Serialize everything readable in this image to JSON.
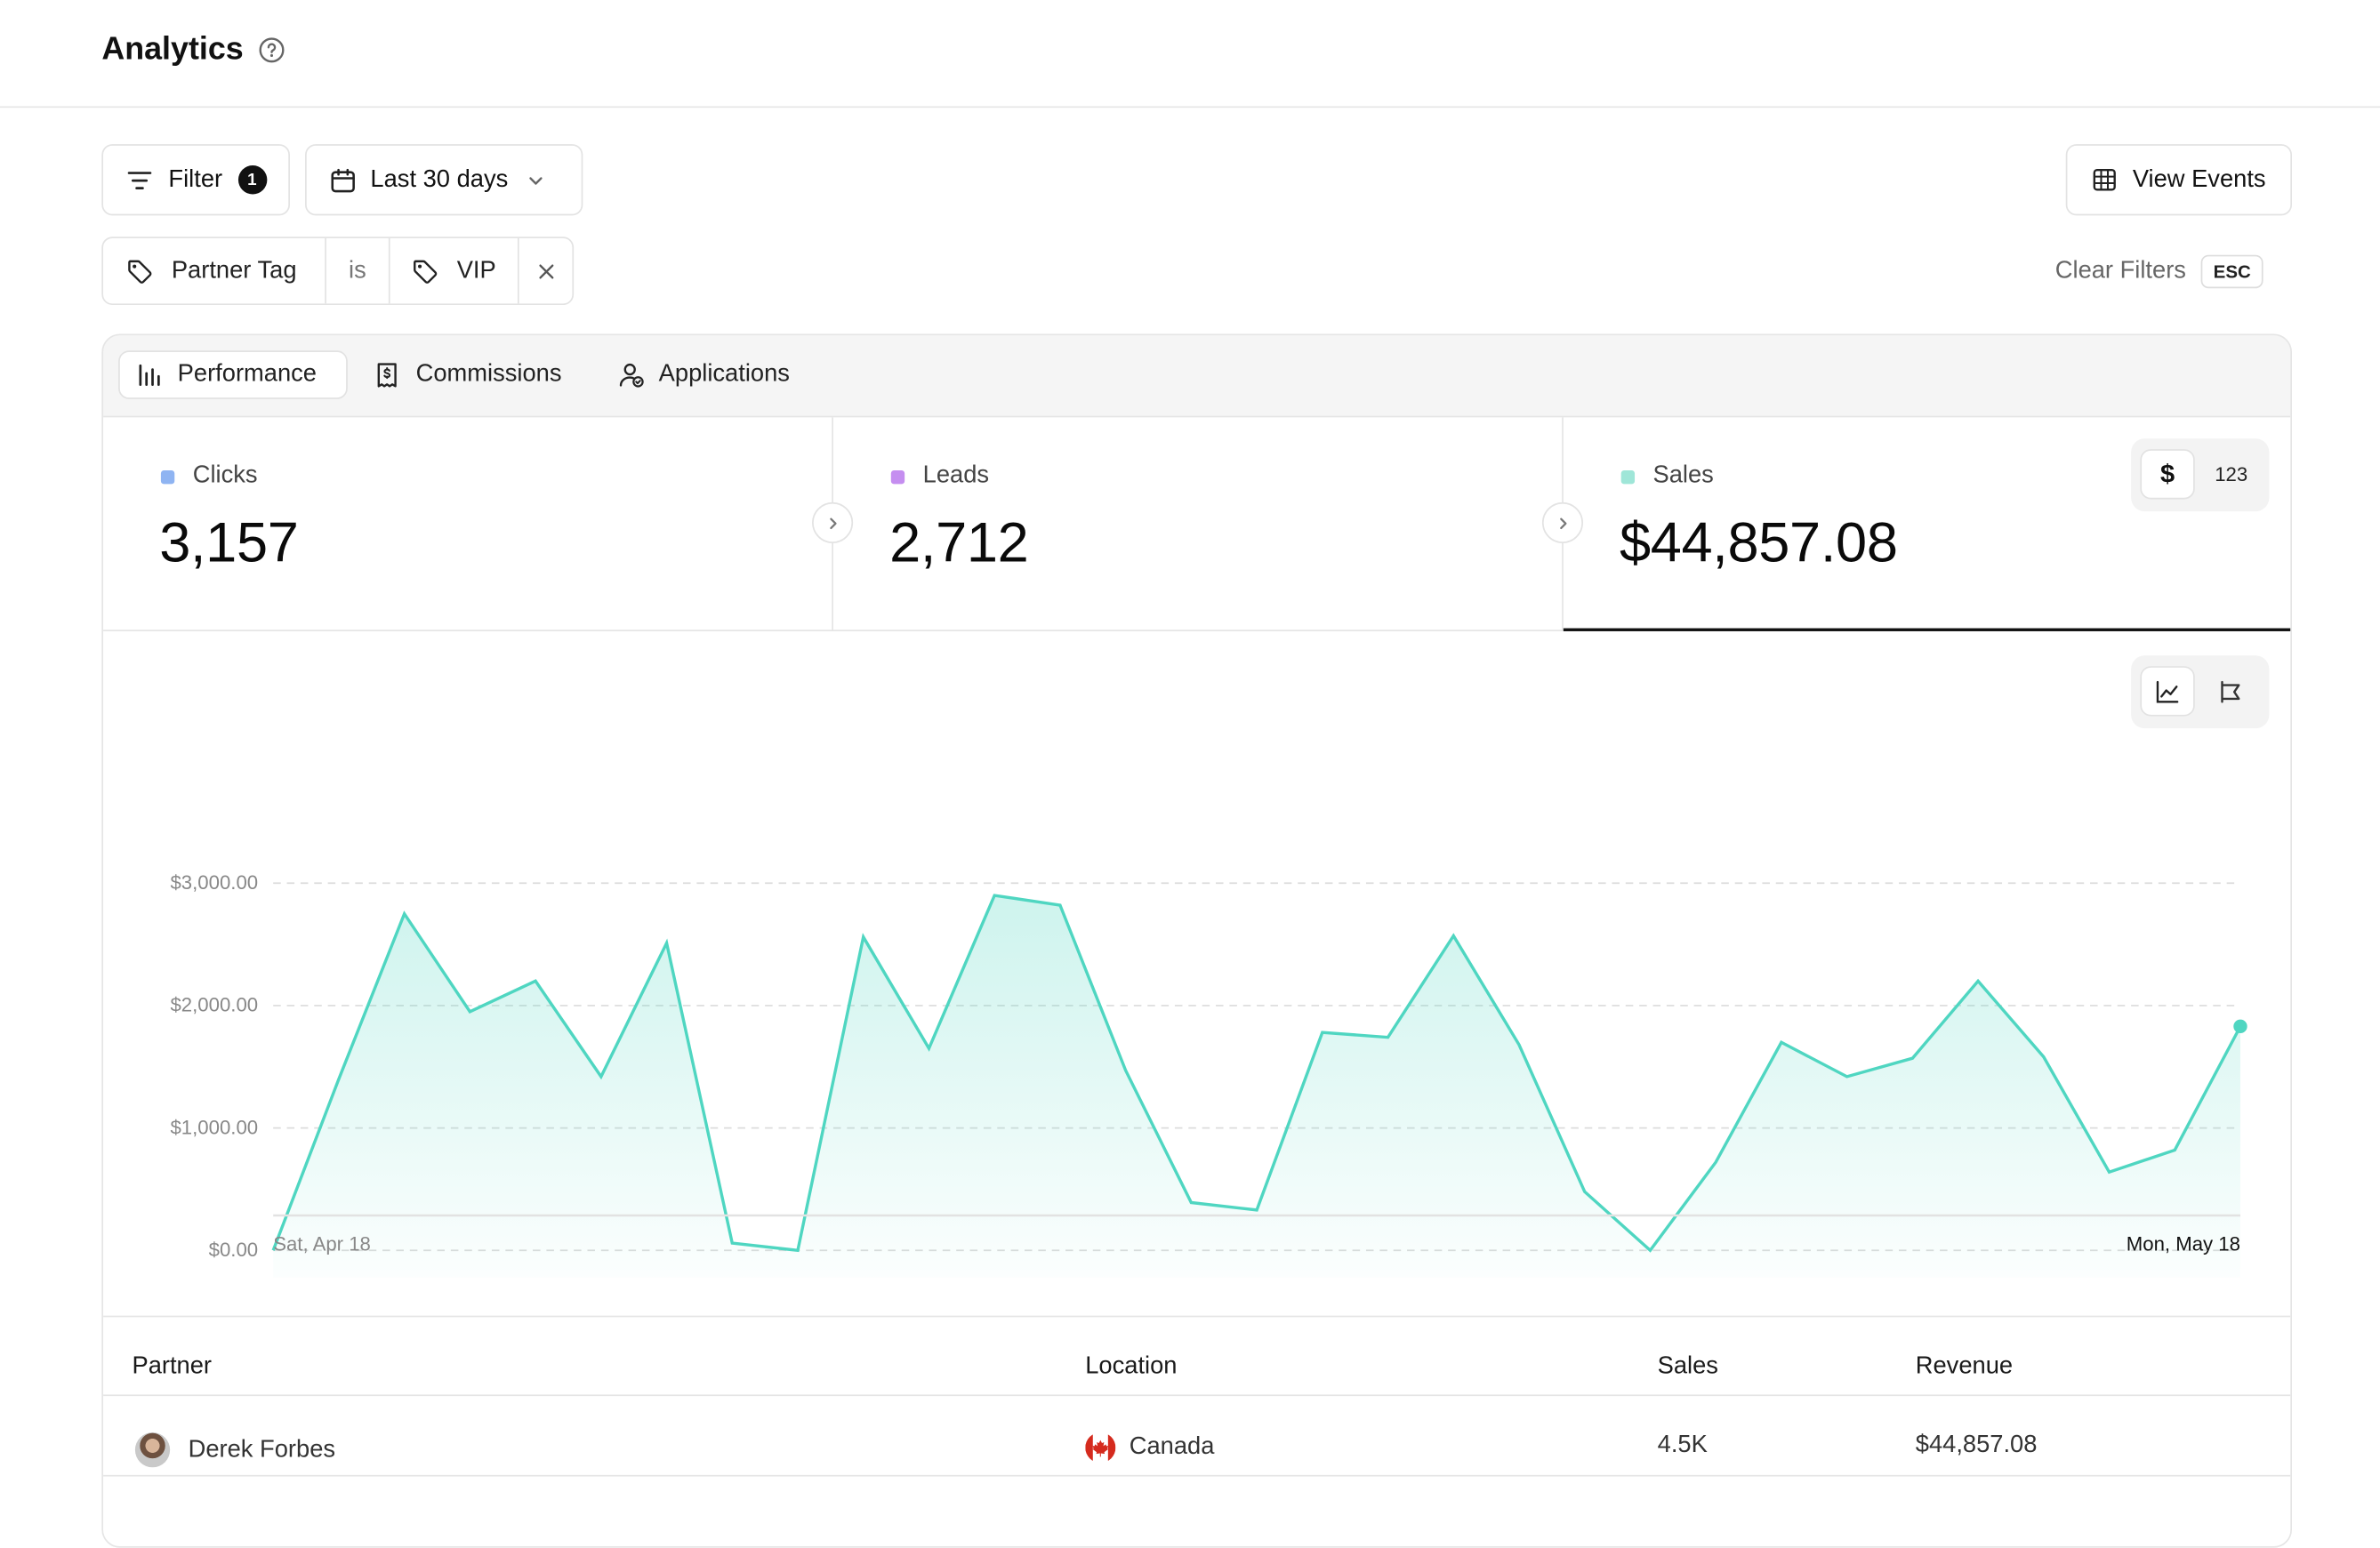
{
  "header": {
    "title": "Analytics",
    "help_icon": "help-circle-icon"
  },
  "toolbar": {
    "filter_label": "Filter",
    "filter_count": "1",
    "date_range_label": "Last 30 days",
    "view_events_label": "View Events"
  },
  "active_filter": {
    "field": "Partner Tag",
    "operator": "is",
    "value": "VIP"
  },
  "clear_filters": {
    "label": "Clear Filters",
    "shortcut": "ESC"
  },
  "tabs": [
    {
      "label": "Performance",
      "icon": "bar-chart-icon",
      "active": true
    },
    {
      "label": "Commissions",
      "icon": "receipt-icon",
      "active": false
    },
    {
      "label": "Applications",
      "icon": "user-check-icon",
      "active": false
    }
  ],
  "metrics": [
    {
      "label": "Clicks",
      "value": "3,157",
      "color": "#8fb4f2"
    },
    {
      "label": "Leads",
      "value": "2,712",
      "color": "#c58ef0"
    },
    {
      "label": "Sales",
      "value": "$44,857.08",
      "color": "#9fe6d8",
      "active": true
    }
  ],
  "unit_toggle": {
    "currency": "$",
    "count": "123"
  },
  "chart_data": {
    "type": "area",
    "series": [
      {
        "values": [
          0,
          1400,
          2750,
          1950,
          2200,
          1420,
          2510,
          60,
          0,
          2560,
          1650,
          2900,
          2820,
          1470,
          390,
          330,
          1780,
          1740,
          2570,
          1680,
          480,
          0,
          720,
          1700,
          1420,
          1570,
          2200,
          1580,
          640,
          820,
          1830
        ]
      }
    ],
    "ylim": [
      0,
      3000
    ],
    "y_ticks": [
      "$3,000.00",
      "$2,000.00",
      "$1,000.00",
      "$0.00"
    ],
    "x_start_label": "Sat, Apr 18",
    "x_end_label": "Mon, May 18",
    "color": "#4fd6c1",
    "grid": true
  },
  "table": {
    "headers": [
      "Partner",
      "Location",
      "Sales",
      "Revenue"
    ],
    "rows": [
      {
        "partner": "Derek Forbes",
        "location": "Canada",
        "sales": "4.5K",
        "revenue": "$44,857.08"
      }
    ]
  }
}
